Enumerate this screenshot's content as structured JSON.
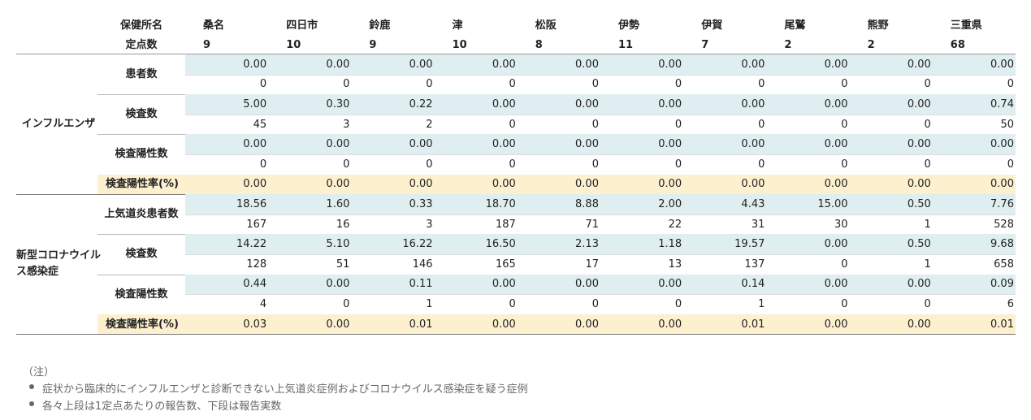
{
  "header": {
    "office_label": "保健所名",
    "count_label": "定点数",
    "offices": [
      "桑名",
      "四日市",
      "鈴鹿",
      "津",
      "松阪",
      "伊勢",
      "伊賀",
      "尾鷲",
      "熊野",
      "三重県"
    ],
    "counts": [
      9,
      10,
      9,
      10,
      8,
      11,
      7,
      2,
      2,
      68
    ]
  },
  "groups": [
    {
      "name": "インフルエンザ",
      "rows": [
        {
          "label": "患者数",
          "upper": [
            "0.00",
            "0.00",
            "0.00",
            "0.00",
            "0.00",
            "0.00",
            "0.00",
            "0.00",
            "0.00",
            "0.00"
          ],
          "lower": [
            "0",
            "0",
            "0",
            "0",
            "0",
            "0",
            "0",
            "0",
            "0",
            "0"
          ]
        },
        {
          "label": "検査数",
          "upper": [
            "5.00",
            "0.30",
            "0.22",
            "0.00",
            "0.00",
            "0.00",
            "0.00",
            "0.00",
            "0.00",
            "0.74"
          ],
          "lower": [
            "45",
            "3",
            "2",
            "0",
            "0",
            "0",
            "0",
            "0",
            "0",
            "50"
          ]
        },
        {
          "label": "検査陽性数",
          "upper": [
            "0.00",
            "0.00",
            "0.00",
            "0.00",
            "0.00",
            "0.00",
            "0.00",
            "0.00",
            "0.00",
            "0.00"
          ],
          "lower": [
            "0",
            "0",
            "0",
            "0",
            "0",
            "0",
            "0",
            "0",
            "0",
            "0"
          ]
        },
        {
          "label": "検査陽性率(%)",
          "values": [
            "0.00",
            "0.00",
            "0.00",
            "0.00",
            "0.00",
            "0.00",
            "0.00",
            "0.00",
            "0.00",
            "0.00"
          ]
        }
      ]
    },
    {
      "name": "新型コロナウイルス感染症",
      "rows": [
        {
          "label": "上気道炎患者数",
          "upper": [
            "18.56",
            "1.60",
            "0.33",
            "18.70",
            "8.88",
            "2.00",
            "4.43",
            "15.00",
            "0.50",
            "7.76"
          ],
          "lower": [
            "167",
            "16",
            "3",
            "187",
            "71",
            "22",
            "31",
            "30",
            "1",
            "528"
          ]
        },
        {
          "label": "検査数",
          "upper": [
            "14.22",
            "5.10",
            "16.22",
            "16.50",
            "2.13",
            "1.18",
            "19.57",
            "0.00",
            "0.50",
            "9.68"
          ],
          "lower": [
            "128",
            "51",
            "146",
            "165",
            "17",
            "13",
            "137",
            "0",
            "1",
            "658"
          ]
        },
        {
          "label": "検査陽性数",
          "upper": [
            "0.44",
            "0.00",
            "0.11",
            "0.00",
            "0.00",
            "0.00",
            "0.14",
            "0.00",
            "0.00",
            "0.09"
          ],
          "lower": [
            "4",
            "0",
            "1",
            "0",
            "0",
            "0",
            "1",
            "0",
            "0",
            "6"
          ]
        },
        {
          "label": "検査陽性率(%)",
          "values": [
            "0.03",
            "0.00",
            "0.01",
            "0.00",
            "0.00",
            "0.00",
            "0.01",
            "0.00",
            "0.00",
            "0.01"
          ]
        }
      ]
    }
  ],
  "notes": {
    "heading": "（注）",
    "items": [
      "症状から臨床的にインフルエンザと診断できない上気道炎症例およびコロナウイルス感染症を疑う症例",
      "各々上段は1定点あたりの報告数、下段は報告実数"
    ]
  }
}
